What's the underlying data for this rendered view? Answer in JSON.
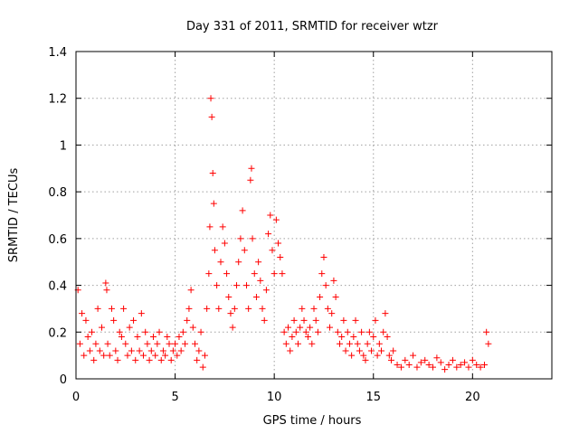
{
  "chart_data": {
    "type": "scatter",
    "title": "Day 331 of 2011, SRMTID for receiver wtzr",
    "xlabel": "GPS time / hours",
    "ylabel": "SRMTID / TECUs",
    "xlim": [
      0,
      24
    ],
    "ylim": [
      0,
      1.4
    ],
    "xticks": [
      0,
      5,
      10,
      15,
      20
    ],
    "xtick_labels": [
      "0",
      "5",
      "10",
      "15",
      "20"
    ],
    "yticks": [
      0,
      0.2,
      0.4,
      0.6,
      0.8,
      1,
      1.2,
      1.4
    ],
    "ytick_labels": [
      "0",
      "0.2",
      "0.4",
      "0.6",
      "0.8",
      "1",
      "1.2",
      "1.4"
    ],
    "grid": true,
    "marker": "+",
    "color": "#ff0000",
    "series": [
      {
        "name": "SRMTID",
        "x": [
          0.1,
          0.2,
          0.3,
          0.4,
          0.5,
          0.6,
          0.7,
          0.8,
          0.9,
          1.0,
          1.1,
          1.2,
          1.3,
          1.4,
          1.5,
          1.55,
          1.6,
          1.7,
          1.8,
          1.9,
          2.0,
          2.1,
          2.2,
          2.3,
          2.4,
          2.5,
          2.6,
          2.7,
          2.8,
          2.9,
          3.0,
          3.1,
          3.2,
          3.3,
          3.4,
          3.5,
          3.6,
          3.7,
          3.8,
          3.9,
          4.0,
          4.1,
          4.2,
          4.3,
          4.4,
          4.5,
          4.6,
          4.7,
          4.8,
          4.9,
          5.0,
          5.1,
          5.2,
          5.3,
          5.4,
          5.5,
          5.6,
          5.7,
          5.8,
          5.9,
          6.0,
          6.1,
          6.2,
          6.3,
          6.4,
          6.5,
          6.6,
          6.7,
          6.75,
          6.8,
          6.85,
          6.9,
          6.95,
          7.0,
          7.1,
          7.2,
          7.3,
          7.4,
          7.5,
          7.6,
          7.7,
          7.8,
          7.9,
          8.0,
          8.1,
          8.2,
          8.3,
          8.4,
          8.5,
          8.6,
          8.7,
          8.8,
          8.85,
          8.9,
          9.0,
          9.1,
          9.2,
          9.3,
          9.4,
          9.5,
          9.6,
          9.7,
          9.8,
          9.9,
          10.0,
          10.1,
          10.2,
          10.3,
          10.4,
          10.5,
          10.6,
          10.7,
          10.8,
          10.9,
          11.0,
          11.1,
          11.2,
          11.3,
          11.4,
          11.5,
          11.6,
          11.7,
          11.8,
          11.9,
          12.0,
          12.1,
          12.2,
          12.3,
          12.4,
          12.5,
          12.6,
          12.7,
          12.8,
          12.9,
          13.0,
          13.1,
          13.2,
          13.3,
          13.4,
          13.5,
          13.6,
          13.7,
          13.8,
          13.9,
          14.0,
          14.1,
          14.2,
          14.3,
          14.4,
          14.5,
          14.6,
          14.7,
          14.8,
          14.9,
          15.0,
          15.1,
          15.2,
          15.3,
          15.4,
          15.5,
          15.6,
          15.7,
          15.8,
          15.9,
          16.0,
          16.2,
          16.4,
          16.6,
          16.8,
          17.0,
          17.2,
          17.4,
          17.6,
          17.8,
          18.0,
          18.2,
          18.4,
          18.6,
          18.8,
          19.0,
          19.2,
          19.4,
          19.6,
          19.8,
          20.0,
          20.2,
          20.4,
          20.6,
          20.7,
          20.8
        ],
        "y": [
          0.38,
          0.15,
          0.28,
          0.1,
          0.25,
          0.18,
          0.12,
          0.2,
          0.08,
          0.15,
          0.3,
          0.12,
          0.22,
          0.1,
          0.41,
          0.38,
          0.15,
          0.1,
          0.3,
          0.25,
          0.12,
          0.08,
          0.2,
          0.18,
          0.3,
          0.15,
          0.1,
          0.22,
          0.12,
          0.25,
          0.08,
          0.18,
          0.12,
          0.28,
          0.1,
          0.2,
          0.15,
          0.08,
          0.12,
          0.18,
          0.1,
          0.15,
          0.2,
          0.08,
          0.12,
          0.1,
          0.18,
          0.15,
          0.08,
          0.12,
          0.15,
          0.1,
          0.18,
          0.12,
          0.2,
          0.15,
          0.25,
          0.3,
          0.38,
          0.22,
          0.15,
          0.08,
          0.12,
          0.2,
          0.05,
          0.1,
          0.3,
          0.45,
          0.65,
          1.2,
          1.12,
          0.88,
          0.75,
          0.55,
          0.4,
          0.3,
          0.5,
          0.65,
          0.58,
          0.45,
          0.35,
          0.28,
          0.22,
          0.3,
          0.4,
          0.5,
          0.6,
          0.72,
          0.55,
          0.4,
          0.3,
          0.85,
          0.9,
          0.6,
          0.45,
          0.35,
          0.5,
          0.42,
          0.3,
          0.25,
          0.38,
          0.62,
          0.7,
          0.55,
          0.45,
          0.68,
          0.58,
          0.52,
          0.45,
          0.2,
          0.15,
          0.22,
          0.12,
          0.18,
          0.25,
          0.2,
          0.15,
          0.22,
          0.3,
          0.25,
          0.2,
          0.18,
          0.22,
          0.15,
          0.3,
          0.25,
          0.2,
          0.35,
          0.45,
          0.52,
          0.4,
          0.3,
          0.22,
          0.28,
          0.42,
          0.35,
          0.2,
          0.15,
          0.18,
          0.25,
          0.12,
          0.2,
          0.15,
          0.1,
          0.18,
          0.25,
          0.15,
          0.12,
          0.2,
          0.1,
          0.08,
          0.15,
          0.2,
          0.12,
          0.18,
          0.25,
          0.1,
          0.15,
          0.12,
          0.2,
          0.28,
          0.18,
          0.1,
          0.08,
          0.12,
          0.06,
          0.05,
          0.08,
          0.06,
          0.1,
          0.05,
          0.07,
          0.08,
          0.06,
          0.05,
          0.09,
          0.07,
          0.04,
          0.06,
          0.08,
          0.05,
          0.06,
          0.07,
          0.05,
          0.08,
          0.06,
          0.05,
          0.06,
          0.2,
          0.15
        ]
      }
    ]
  }
}
